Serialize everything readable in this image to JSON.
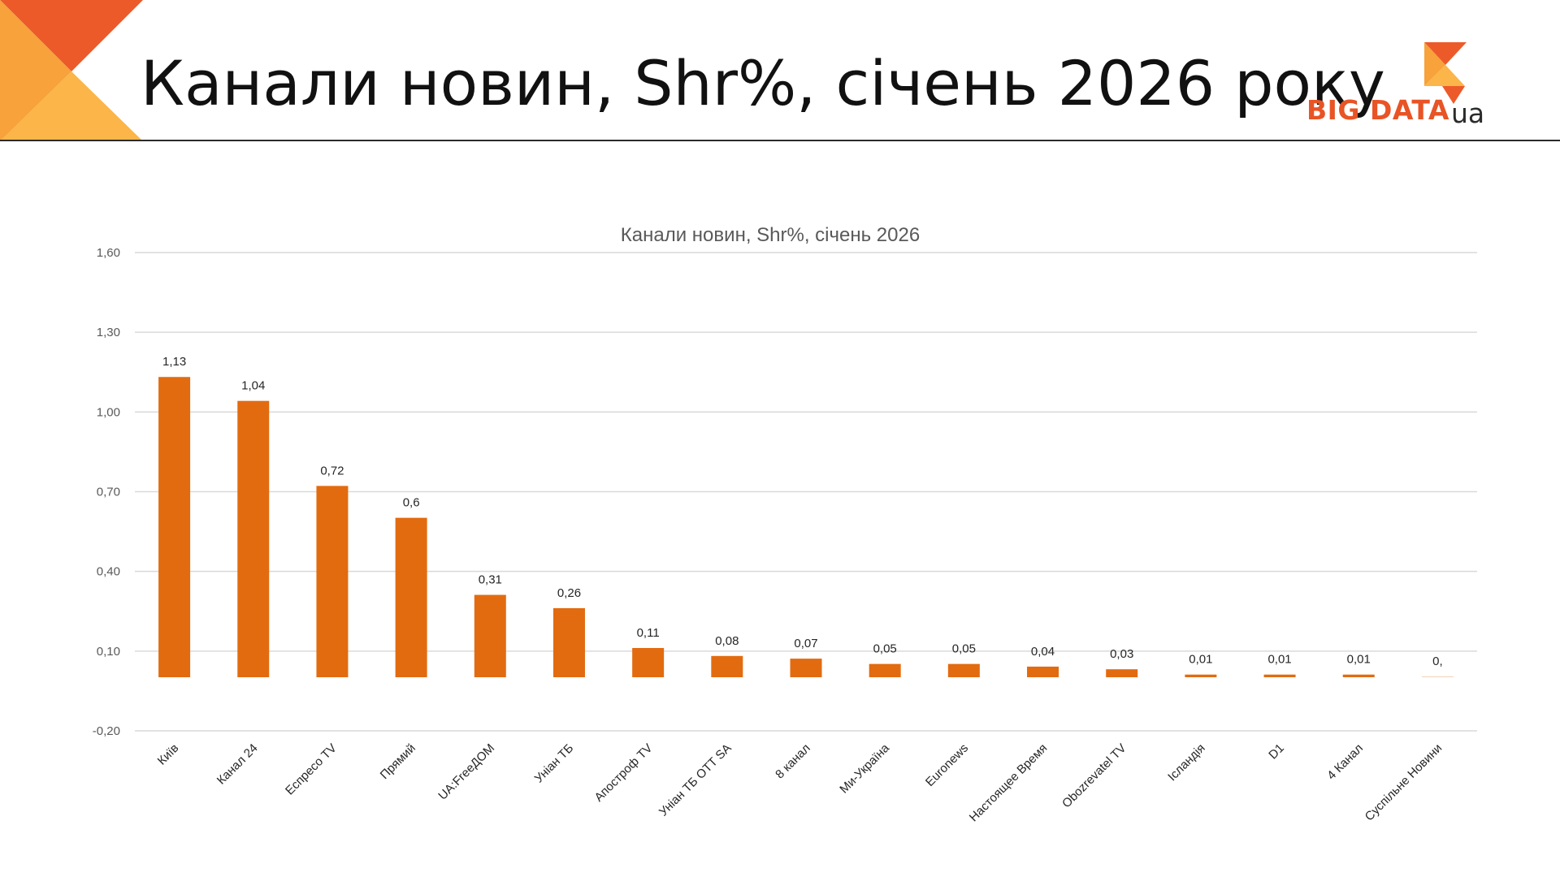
{
  "slide": {
    "title": "Канали новин, Shr%, січень 2026 року",
    "logo": {
      "text": "BIG DATA",
      "suffix": "ua"
    }
  },
  "colors": {
    "bar": "#e26b10",
    "accent_orange": "#f7a23a",
    "accent_red": "#ed5a2a",
    "gridline": "#d9d9d9",
    "text": "#595959"
  },
  "chart_data": {
    "type": "bar",
    "title": "Канали новин, Shr%, січень 2026",
    "xlabel": "",
    "ylabel": "",
    "ylim": [
      -0.2,
      1.6
    ],
    "grid": true,
    "legend": "none",
    "y_ticks": [
      -0.2,
      0.1,
      0.4,
      0.7,
      1.0,
      1.3,
      1.6
    ],
    "y_tick_labels": [
      "-0,20",
      "0,10",
      "0,40",
      "0,70",
      "1,00",
      "1,30",
      "1,60"
    ],
    "categories": [
      "Київ",
      "Канал 24",
      "Еспресо TV",
      "Прямий",
      "UA:FreeДОМ",
      "Уніан ТБ",
      "Апостроф TV",
      "Уніан ТБ OTT SA",
      "8 канал",
      "Ми-Україна",
      "Euronews",
      "Настоящее Время",
      "Obozrevatel TV",
      "Ісландія",
      "D1",
      "4 Канал",
      "Суспільне Новини"
    ],
    "values": [
      1.13,
      1.04,
      0.72,
      0.6,
      0.31,
      0.26,
      0.11,
      0.08,
      0.07,
      0.05,
      0.05,
      0.04,
      0.03,
      0.01,
      0.01,
      0.01,
      0.0
    ],
    "data_labels": [
      "1,13",
      "1,04",
      "0,72",
      "0,6",
      "0,31",
      "0,26",
      "0,11",
      "0,08",
      "0,07",
      "0,05",
      "0,05",
      "0,04",
      "0,03",
      "0,01",
      "0,01",
      "0,01",
      "0,"
    ]
  }
}
